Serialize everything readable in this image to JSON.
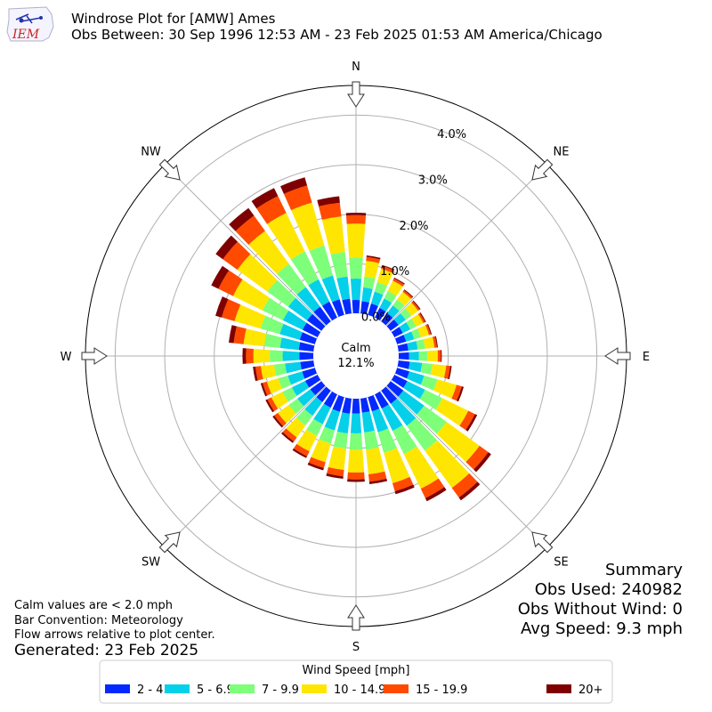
{
  "header": {
    "title": "Windrose Plot for [AMW] Ames",
    "subtitle": "Obs Between: 30 Sep 1996 12:53 AM - 23 Feb 2025 01:53 AM America/Chicago",
    "logo_text": "IEM"
  },
  "notes": {
    "line1": "Calm values are < 2.0 mph",
    "line2": "Bar Convention: Meteorology",
    "line3": "Flow arrows relative to plot center.",
    "generated": "Generated: 23 Feb 2025"
  },
  "summary": {
    "title": "Summary",
    "obs_used": "Obs Used: 240982",
    "obs_without_wind": "Obs Without Wind: 0",
    "avg_speed": "Avg Speed: 9.3 mph"
  },
  "calm": {
    "label": "Calm",
    "value": "12.1%"
  },
  "chart_data": {
    "type": "windrose",
    "directions_deg": [
      0,
      10,
      20,
      30,
      40,
      50,
      60,
      70,
      80,
      90,
      100,
      110,
      120,
      130,
      140,
      150,
      160,
      170,
      180,
      190,
      200,
      210,
      220,
      230,
      240,
      250,
      260,
      270,
      280,
      290,
      300,
      310,
      320,
      330,
      340,
      350
    ],
    "cardinal_labels": [
      {
        "label": "N",
        "deg": 0
      },
      {
        "label": "NE",
        "deg": 45
      },
      {
        "label": "E",
        "deg": 90
      },
      {
        "label": "SE",
        "deg": 135
      },
      {
        "label": "S",
        "deg": 180
      },
      {
        "label": "SW",
        "deg": 225
      },
      {
        "label": "W",
        "deg": 270
      },
      {
        "label": "NW",
        "deg": 315
      }
    ],
    "radial_ticks": [
      "0.0%",
      "1.0%",
      "2.0%",
      "3.0%",
      "4.0%"
    ],
    "radial_tick_values": [
      0,
      1,
      2,
      3,
      4
    ],
    "radial_max": 4.6,
    "legend_title": "Wind Speed [mph]",
    "legend_placement": "bottom",
    "series": [
      {
        "name": "2 - 4.9",
        "color": "#0429ff",
        "values": [
          0.27,
          0.25,
          0.24,
          0.22,
          0.21,
          0.2,
          0.19,
          0.19,
          0.2,
          0.21,
          0.23,
          0.26,
          0.29,
          0.32,
          0.33,
          0.32,
          0.3,
          0.29,
          0.3,
          0.31,
          0.31,
          0.3,
          0.29,
          0.28,
          0.28,
          0.27,
          0.27,
          0.28,
          0.3,
          0.32,
          0.34,
          0.36,
          0.37,
          0.36,
          0.33,
          0.3
        ]
      },
      {
        "name": "5 - 6.9",
        "color": "#04d0ea",
        "values": [
          0.43,
          0.28,
          0.25,
          0.21,
          0.19,
          0.18,
          0.17,
          0.17,
          0.19,
          0.2,
          0.25,
          0.31,
          0.4,
          0.52,
          0.55,
          0.5,
          0.44,
          0.4,
          0.4,
          0.4,
          0.39,
          0.37,
          0.34,
          0.32,
          0.3,
          0.3,
          0.31,
          0.34,
          0.38,
          0.42,
          0.44,
          0.47,
          0.49,
          0.5,
          0.5,
          0.45
        ]
      },
      {
        "name": "7 - 9.9",
        "color": "#7dff79",
        "values": [
          0.43,
          0.22,
          0.2,
          0.17,
          0.15,
          0.14,
          0.13,
          0.14,
          0.15,
          0.17,
          0.21,
          0.28,
          0.39,
          0.56,
          0.62,
          0.52,
          0.43,
          0.35,
          0.33,
          0.31,
          0.28,
          0.26,
          0.24,
          0.22,
          0.21,
          0.2,
          0.22,
          0.26,
          0.32,
          0.4,
          0.46,
          0.52,
          0.58,
          0.63,
          0.63,
          0.5
        ]
      },
      {
        "name": "10 - 14.9",
        "color": "#ffe600",
        "values": [
          0.68,
          0.32,
          0.28,
          0.23,
          0.19,
          0.17,
          0.16,
          0.17,
          0.19,
          0.21,
          0.28,
          0.4,
          0.58,
          0.82,
          0.93,
          0.78,
          0.64,
          0.5,
          0.46,
          0.43,
          0.39,
          0.35,
          0.3,
          0.27,
          0.25,
          0.24,
          0.27,
          0.33,
          0.42,
          0.55,
          0.66,
          0.75,
          0.82,
          0.86,
          0.9,
          0.72
        ]
      },
      {
        "name": "15 - 19.9",
        "color": "#ff4a00",
        "values": [
          0.17,
          0.08,
          0.06,
          0.05,
          0.04,
          0.04,
          0.04,
          0.04,
          0.05,
          0.06,
          0.08,
          0.11,
          0.15,
          0.22,
          0.24,
          0.21,
          0.17,
          0.15,
          0.14,
          0.13,
          0.12,
          0.11,
          0.1,
          0.09,
          0.09,
          0.09,
          0.11,
          0.15,
          0.2,
          0.27,
          0.33,
          0.36,
          0.38,
          0.38,
          0.36,
          0.28
        ]
      },
      {
        "name": "20+",
        "color": "#7f0000",
        "values": [
          0.05,
          0.03,
          0.02,
          0.02,
          0.02,
          0.02,
          0.02,
          0.02,
          0.02,
          0.02,
          0.03,
          0.04,
          0.05,
          0.07,
          0.07,
          0.07,
          0.06,
          0.05,
          0.05,
          0.05,
          0.05,
          0.04,
          0.04,
          0.04,
          0.04,
          0.04,
          0.05,
          0.07,
          0.1,
          0.13,
          0.16,
          0.18,
          0.19,
          0.18,
          0.17,
          0.13
        ]
      }
    ]
  }
}
